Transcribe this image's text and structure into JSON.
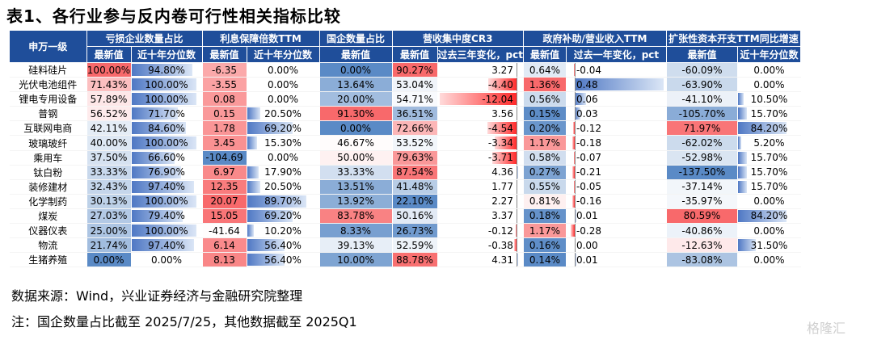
{
  "title": "表1、各行业参与反内卷可行性相关指标比较",
  "header": {
    "industry_col": "申万一级",
    "groups": [
      "亏损企业数量占比",
      "利息保障倍数TTM",
      "国企数量占比",
      "营收集中度CR3",
      "政府补助/营业收入TTM",
      "扩张性资本开支TTM同比增速"
    ],
    "subs": [
      "最新值",
      "近十年分位数",
      "最新值",
      "近十年分位数",
      "最新值",
      "最新值",
      "过去三年变化，pct",
      "最新值",
      "过去一年变化，pct",
      "最新值",
      "近十年分位数"
    ]
  },
  "rows": [
    {
      "ind": "硅料硅片",
      "loss": "100.00%",
      "loss_p": "94.80%",
      "icr": "-6.35",
      "icr_p": "0.00%",
      "soe": "0.00%",
      "cr3": "90.27%",
      "cr3_d": "3.27",
      "sub": "0.64%",
      "sub_d": "-0.04",
      "cap": "-60.09%",
      "cap_p": "0.00%"
    },
    {
      "ind": "光伏电池组件",
      "loss": "71.43%",
      "loss_p": "100.00%",
      "icr": "-3.55",
      "icr_p": "0.00%",
      "soe": "13.64%",
      "cr3": "53.04%",
      "cr3_d": "-4.40",
      "sub": "1.36%",
      "sub_d": "0.48",
      "cap": "-63.90%",
      "cap_p": "0.00%"
    },
    {
      "ind": "锂电专用设备",
      "loss": "57.89%",
      "loss_p": "100.00%",
      "icr": "0.08",
      "icr_p": "0.00%",
      "soe": "20.00%",
      "cr3": "54.71%",
      "cr3_d": "-12.04",
      "sub": "0.56%",
      "sub_d": "0.06",
      "cap": "-41.10%",
      "cap_p": "10.50%"
    },
    {
      "ind": "普钢",
      "loss": "56.52%",
      "loss_p": "71.70%",
      "icr": "0.15",
      "icr_p": "20.50%",
      "soe": "91.30%",
      "cr3": "36.51%",
      "cr3_d": "3.56",
      "sub": "0.15%",
      "sub_d": "0.03",
      "cap": "-105.70%",
      "cap_p": "15.70%"
    },
    {
      "ind": "互联网电商",
      "loss": "42.11%",
      "loss_p": "84.60%",
      "icr": "1.78",
      "icr_p": "69.20%",
      "soe": "0.00%",
      "cr3": "72.66%",
      "cr3_d": "-4.54",
      "sub": "0.20%",
      "sub_d": "-0.12",
      "cap": "71.97%",
      "cap_p": "84.20%"
    },
    {
      "ind": "玻璃玻纤",
      "loss": "40.00%",
      "loss_p": "100.00%",
      "icr": "3.45",
      "icr_p": "15.30%",
      "soe": "46.67%",
      "cr3": "53.52%",
      "cr3_d": "-3.34",
      "sub": "1.17%",
      "sub_d": "-0.18",
      "cap": "-62.02%",
      "cap_p": "5.20%"
    },
    {
      "ind": "乘用车",
      "loss": "37.50%",
      "loss_p": "66.60%",
      "icr": "-104.69",
      "icr_p": "0.00%",
      "soe": "50.00%",
      "cr3": "79.63%",
      "cr3_d": "-3.71",
      "sub": "0.58%",
      "sub_d": "-0.07",
      "cap": "-52.98%",
      "cap_p": "15.70%"
    },
    {
      "ind": "钛白粉",
      "loss": "33.33%",
      "loss_p": "76.90%",
      "icr": "6.97",
      "icr_p": "17.90%",
      "soe": "33.33%",
      "cr3": "87.54%",
      "cr3_d": "4.36",
      "sub": "0.27%",
      "sub_d": "-0.21",
      "cap": "-137.50%",
      "cap_p": "15.70%"
    },
    {
      "ind": "装修建材",
      "loss": "32.43%",
      "loss_p": "97.40%",
      "icr": "12.35",
      "icr_p": "20.50%",
      "soe": "13.51%",
      "cr3": "41.48%",
      "cr3_d": "1.77",
      "sub": "0.55%",
      "sub_d": "-0.05",
      "cap": "-37.14%",
      "cap_p": "15.70%"
    },
    {
      "ind": "化学制药",
      "loss": "30.13%",
      "loss_p": "100.00%",
      "icr": "20.07",
      "icr_p": "89.70%",
      "soe": "13.92%",
      "cr3": "22.10%",
      "cr3_d": "2.27",
      "sub": "0.81%",
      "sub_d": "-0.16",
      "cap": "-35.97%",
      "cap_p": "0.00%"
    },
    {
      "ind": "煤炭",
      "loss": "27.03%",
      "loss_p": "79.40%",
      "icr": "15.05",
      "icr_p": "69.20%",
      "soe": "83.78%",
      "cr3": "50.16%",
      "cr3_d": "3.37",
      "sub": "0.18%",
      "sub_d": "0.01",
      "cap": "80.59%",
      "cap_p": "84.20%"
    },
    {
      "ind": "仪器仪表",
      "loss": "25.00%",
      "loss_p": "100.00%",
      "icr": "-41.64",
      "icr_p": "10.20%",
      "soe": "8.33%",
      "cr3": "26.73%",
      "cr3_d": "-0.12",
      "sub": "1.17%",
      "sub_d": "-0.28",
      "cap": "-40.86%",
      "cap_p": "0.00%"
    },
    {
      "ind": "物流",
      "loss": "21.74%",
      "loss_p": "97.40%",
      "icr": "6.14",
      "icr_p": "56.40%",
      "soe": "39.13%",
      "cr3": "52.59%",
      "cr3_d": "-0.38",
      "sub": "0.16%",
      "sub_d": "0.00",
      "cap": "-12.63%",
      "cap_p": "31.50%"
    },
    {
      "ind": "生猪养殖",
      "loss": "0.00%",
      "loss_p": "0.00%",
      "icr": "8.13",
      "icr_p": "56.40%",
      "soe": "10.00%",
      "cr3": "88.78%",
      "cr3_d": "4.31",
      "sub": "0.14%",
      "sub_d": "0.01",
      "cap": "-83.08%",
      "cap_p": "0.00%"
    }
  ],
  "colors": {
    "header_bg": "#1f4e9a",
    "strong_red": "#f8696b",
    "strong_blue": "#5a8ac6",
    "bar_blue": "#4f78c4",
    "bar_red": "#ff2a2a"
  },
  "footer": {
    "source": "数据来源：Wind，兴业证券经济与金融研究院整理",
    "note": "注：国企数量占比截至 2025/7/25，其他数据截至 2025Q1"
  },
  "watermark": "格隆汇"
}
